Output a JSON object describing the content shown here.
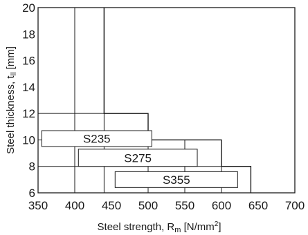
{
  "chart_data": {
    "type": "step-line",
    "xlabel": "Steel strength, R",
    "xlabel_sub": "m",
    "xlabel_unit": " [N/mm",
    "xlabel_sup": "2",
    "xlabel_close": "]",
    "ylabel": "Steel thickness, t",
    "ylabel_sub": "ll",
    "ylabel_unit": " [mm]",
    "xlim": [
      350,
      700
    ],
    "ylim": [
      6,
      20
    ],
    "xticks": [
      350,
      400,
      450,
      500,
      550,
      600,
      650,
      700
    ],
    "yticks": [
      6,
      8,
      10,
      12,
      14,
      16,
      18,
      20
    ],
    "grid": {
      "vertical": [
        400,
        440,
        500,
        550,
        600
      ],
      "horizontal": [
        8,
        10,
        12,
        14,
        16,
        18
      ]
    },
    "boundary": [
      [
        440,
        20
      ],
      [
        440,
        12
      ],
      [
        500,
        12
      ],
      [
        500,
        10
      ],
      [
        600,
        10
      ],
      [
        600,
        8
      ],
      [
        640,
        8
      ],
      [
        640,
        6
      ]
    ],
    "grades": [
      {
        "name": "S235",
        "x_range": [
          355,
          505
        ],
        "y_range": [
          9.5,
          10.7
        ]
      },
      {
        "name": "S275",
        "x_range": [
          405,
          567
        ],
        "y_range": [
          8.0,
          9.3
        ]
      },
      {
        "name": "S355",
        "x_range": [
          455,
          622
        ],
        "y_range": [
          6.4,
          7.6
        ]
      }
    ]
  }
}
